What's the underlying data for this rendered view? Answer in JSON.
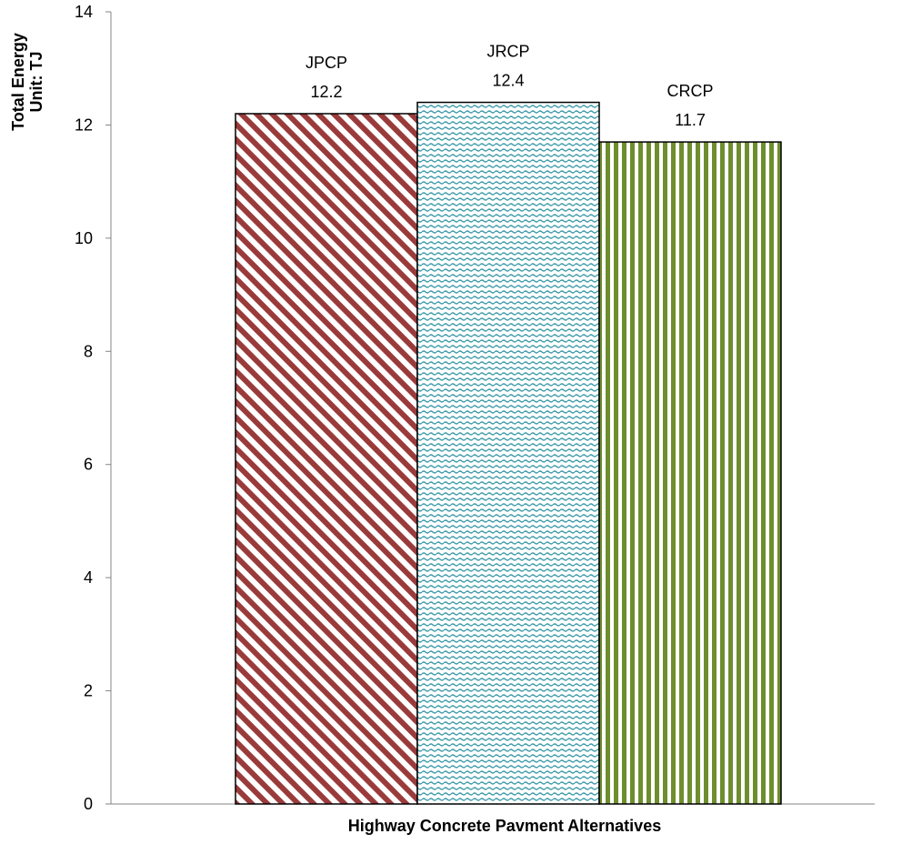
{
  "chart_data": {
    "type": "bar",
    "categories": [
      "JPCP",
      "JRCP",
      "CRCP"
    ],
    "values": [
      12.2,
      12.4,
      11.7
    ],
    "value_labels": [
      "12.2",
      "12.4",
      "11.7"
    ],
    "title": "",
    "xlabel": "Highway Concrete Pavment Alternatives",
    "ylabel_lines": [
      "Total Energy",
      "Unit: TJ"
    ],
    "ylim": [
      0,
      14
    ],
    "yticks": [
      0,
      2,
      4,
      6,
      8,
      10,
      12,
      14
    ],
    "grid": false,
    "legend": "none",
    "bar_styles": [
      {
        "pattern": "diagonal-stripes",
        "color": "#9a3b3b"
      },
      {
        "pattern": "wave-dots",
        "color": "#3a9aa8"
      },
      {
        "pattern": "vertical-stripes",
        "color": "#6e8e2e"
      }
    ]
  }
}
